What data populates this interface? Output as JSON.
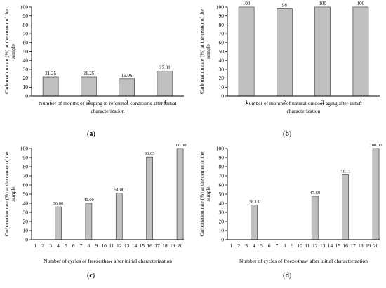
{
  "figure": {
    "panel_labels": [
      "a",
      "b",
      "c",
      "d"
    ]
  },
  "chart_data": [
    {
      "type": "bar",
      "panel": "a",
      "categories": [
        "1",
        "2",
        "3",
        "4"
      ],
      "values": [
        21.25,
        21.25,
        19.06,
        27.81
      ],
      "data_labels": [
        "21.25",
        "21.25",
        "19.06",
        "27.81"
      ],
      "xlabel": "Number of months of keeping in reference conditions after initial characterization",
      "ylabel": "Carbonation rate (%) at the center of the sample",
      "ylim": [
        0,
        100
      ],
      "yticks": [
        0,
        10,
        20,
        30,
        40,
        50,
        60,
        70,
        80,
        90,
        100
      ],
      "grid": false,
      "bar_color": "#c0c0c0"
    },
    {
      "type": "bar",
      "panel": "b",
      "categories": [
        "1",
        "2",
        "3",
        "4"
      ],
      "values": [
        100,
        98,
        100,
        100
      ],
      "data_labels": [
        "100",
        "98",
        "100",
        "100"
      ],
      "xlabel": "Number of months of natural outdoor aging after initial characterization",
      "ylabel": "Carbonation rate (%) at the center of the sample",
      "ylim": [
        0,
        100
      ],
      "yticks": [
        0,
        10,
        20,
        30,
        40,
        50,
        60,
        70,
        80,
        90,
        100
      ],
      "grid": false,
      "bar_color": "#c0c0c0"
    },
    {
      "type": "bar",
      "panel": "c",
      "categories": [
        "1",
        "2",
        "3",
        "4",
        "5",
        "6",
        "7",
        "8",
        "9",
        "10",
        "11",
        "12",
        "13",
        "14",
        "15",
        "16",
        "17",
        "18",
        "19",
        "20"
      ],
      "values": [
        null,
        null,
        null,
        36.06,
        null,
        null,
        null,
        40.0,
        null,
        null,
        null,
        51.0,
        null,
        null,
        null,
        90.63,
        null,
        null,
        null,
        100.0
      ],
      "data_labels": [
        "",
        "",
        "",
        "36.06",
        "",
        "",
        "",
        "40.00",
        "",
        "",
        "",
        "51.00",
        "",
        "",
        "",
        "90.63",
        "",
        "",
        "",
        "100.00"
      ],
      "xlabel": "Number of cycles of freeze/thaw after initial characterization",
      "ylabel": "Carbonation rate (%) at the center of the sample",
      "ylim": [
        0,
        100
      ],
      "yticks": [
        0,
        10,
        20,
        30,
        40,
        50,
        60,
        70,
        80,
        90,
        100
      ],
      "grid": false,
      "bar_color": "#c0c0c0"
    },
    {
      "type": "bar",
      "panel": "d",
      "categories": [
        "1",
        "2",
        "3",
        "4",
        "5",
        "6",
        "7",
        "8",
        "9",
        "10",
        "11",
        "12",
        "13",
        "14",
        "15",
        "16",
        "17",
        "18",
        "19",
        "20"
      ],
      "values": [
        null,
        null,
        null,
        38.13,
        null,
        null,
        null,
        null,
        null,
        null,
        null,
        47.69,
        null,
        null,
        null,
        71.13,
        null,
        null,
        null,
        100.0
      ],
      "data_labels": [
        "",
        "",
        "",
        "38.13",
        "",
        "",
        "",
        "",
        "",
        "",
        "",
        "47.69",
        "",
        "",
        "",
        "71.13",
        "",
        "",
        "",
        "100.00"
      ],
      "xlabel": "Number of cycles of freeze/thaw after initial characterization",
      "ylabel": "Carbonation rate (%) at the center of the sample",
      "ylim": [
        0,
        100
      ],
      "yticks": [
        0,
        10,
        20,
        30,
        40,
        50,
        60,
        70,
        80,
        90,
        100
      ],
      "grid": false,
      "bar_color": "#c0c0c0"
    }
  ]
}
